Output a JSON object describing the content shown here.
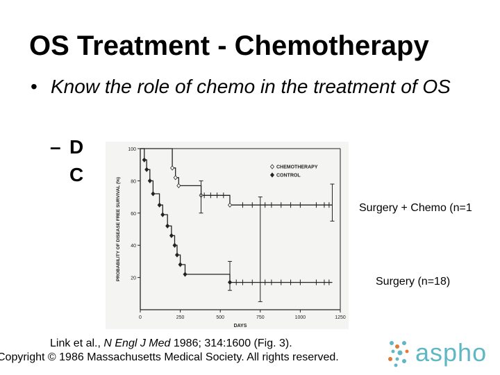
{
  "slide": {
    "title": "OS Treatment - Chemotherapy",
    "bullet": "Know the role of chemo in the treatment of OS",
    "sub_line1": "D",
    "sub_line2": "C",
    "note_chemo": "Surgery + Chemo (n=1",
    "note_surgery": "Surgery (n=18)",
    "citation_line1_pre": "Link et al., ",
    "citation_journal": "N Engl J Med",
    "citation_line1_post": " 1986; 314:1600 (Fig. 3).",
    "citation_line2": "Copyright © 1986 Massachusetts Medical Society.  All rights reserved.",
    "logo_text": "aspho",
    "logo_icon": "dot-cluster-icon",
    "logo_color": "#5fb7c4"
  },
  "chart_data": {
    "type": "line",
    "step": true,
    "xlabel": "DAYS",
    "ylabel": "PROBABILITY OF DISEASE FREE SURVIVAL (%)",
    "xlim": [
      0,
      1250
    ],
    "ylim": [
      0,
      100
    ],
    "xticks": [
      "0",
      "250",
      "500",
      "750",
      "1000",
      "1250"
    ],
    "yticks": [
      "20",
      "40",
      "60",
      "80",
      "100"
    ],
    "legend": {
      "position": "top-right"
    },
    "series": [
      {
        "name": "CHEMOTHERAPY",
        "marker": "open-diamond",
        "points": [
          [
            0,
            100
          ],
          [
            200,
            100
          ],
          [
            200,
            88
          ],
          [
            220,
            88
          ],
          [
            220,
            82
          ],
          [
            240,
            82
          ],
          [
            240,
            77
          ],
          [
            380,
            77
          ],
          [
            380,
            71
          ],
          [
            560,
            71
          ],
          [
            560,
            65
          ],
          [
            1200,
            65
          ]
        ]
      },
      {
        "name": "CONTROL",
        "marker": "filled-diamond",
        "points": [
          [
            0,
            100
          ],
          [
            25,
            100
          ],
          [
            25,
            93
          ],
          [
            40,
            93
          ],
          [
            40,
            87
          ],
          [
            60,
            87
          ],
          [
            60,
            80
          ],
          [
            80,
            80
          ],
          [
            80,
            72
          ],
          [
            120,
            72
          ],
          [
            120,
            65
          ],
          [
            140,
            65
          ],
          [
            140,
            59
          ],
          [
            170,
            59
          ],
          [
            170,
            52
          ],
          [
            195,
            52
          ],
          [
            195,
            46
          ],
          [
            215,
            46
          ],
          [
            215,
            40
          ],
          [
            230,
            40
          ],
          [
            230,
            34
          ],
          [
            250,
            34
          ],
          [
            250,
            28
          ],
          [
            280,
            28
          ],
          [
            280,
            22
          ],
          [
            560,
            22
          ],
          [
            560,
            17
          ],
          [
            1200,
            17
          ]
        ]
      }
    ],
    "censor_marks": [
      {
        "series": "CHEMOTHERAPY",
        "x": [
          400,
          440,
          480,
          520,
          640,
          700,
          780,
          820,
          880,
          940,
          1000,
          1100,
          1150,
          1180
        ]
      },
      {
        "series": "CONTROL",
        "x": [
          600,
          640,
          700,
          780,
          820,
          880,
          940,
          1000,
          1100,
          1150,
          1180
        ]
      }
    ]
  }
}
